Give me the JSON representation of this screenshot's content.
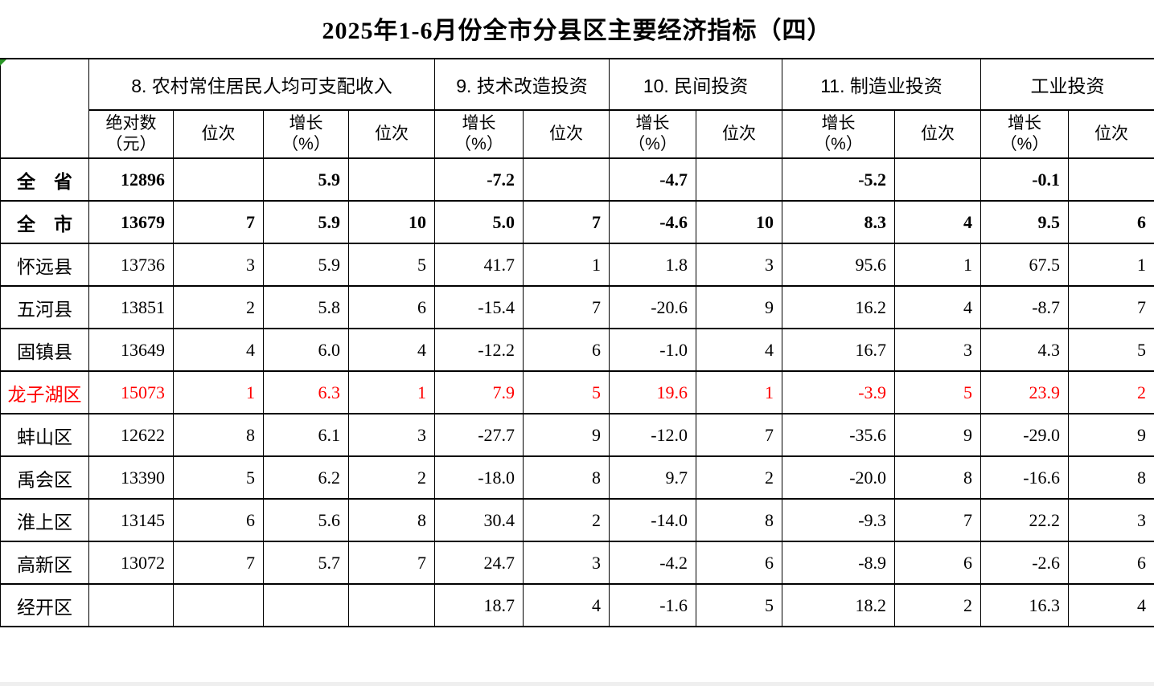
{
  "title": "2025年1-6月份全市分县区主要经济指标（四）",
  "colors": {
    "highlight_red": "#ff0000",
    "error_indicator_green": "#2a9627",
    "border_black": "#000000"
  },
  "table": {
    "groups": [
      {
        "label": "8. 农村常住居民人均可支配收入",
        "cols": 4
      },
      {
        "label": "9. 技术改造投资",
        "cols": 2
      },
      {
        "label": "10. 民间投资",
        "cols": 2
      },
      {
        "label": "11. 制造业投资",
        "cols": 2
      },
      {
        "label": "工业投资",
        "cols": 2
      }
    ],
    "subheaders": [
      {
        "l1": "绝对数",
        "l2": "（元）"
      },
      {
        "l1": "位次",
        "l2": ""
      },
      {
        "l1": "增长",
        "l2": "（%）"
      },
      {
        "l1": "位次",
        "l2": ""
      },
      {
        "l1": "增长",
        "l2": "（%）"
      },
      {
        "l1": "位次",
        "l2": ""
      },
      {
        "l1": "增长",
        "l2": "（%）"
      },
      {
        "l1": "位次",
        "l2": ""
      },
      {
        "l1": "增长",
        "l2": "（%）"
      },
      {
        "l1": "位次",
        "l2": ""
      },
      {
        "l1": "增长",
        "l2": "（%）"
      },
      {
        "l1": "位次",
        "l2": ""
      }
    ],
    "rows": [
      {
        "name": "全　省",
        "bold": true,
        "red": false,
        "values": [
          "12896",
          "",
          "5.9",
          "",
          "-7.2",
          "",
          "-4.7",
          "",
          "-5.2",
          "",
          "-0.1",
          ""
        ]
      },
      {
        "name": "全　市",
        "bold": true,
        "red": false,
        "values": [
          "13679",
          "7",
          "5.9",
          "10",
          "5.0",
          "7",
          "-4.6",
          "10",
          "8.3",
          "4",
          "9.5",
          "6"
        ]
      },
      {
        "name": "怀远县",
        "bold": false,
        "red": false,
        "values": [
          "13736",
          "3",
          "5.9",
          "5",
          "41.7",
          "1",
          "1.8",
          "3",
          "95.6",
          "1",
          "67.5",
          "1"
        ]
      },
      {
        "name": "五河县",
        "bold": false,
        "red": false,
        "values": [
          "13851",
          "2",
          "5.8",
          "6",
          "-15.4",
          "7",
          "-20.6",
          "9",
          "16.2",
          "4",
          "-8.7",
          "7"
        ]
      },
      {
        "name": "固镇县",
        "bold": false,
        "red": false,
        "values": [
          "13649",
          "4",
          "6.0",
          "4",
          "-12.2",
          "6",
          "-1.0",
          "4",
          "16.7",
          "3",
          "4.3",
          "5"
        ]
      },
      {
        "name": "龙子湖区",
        "bold": false,
        "red": true,
        "values": [
          "15073",
          "1",
          "6.3",
          "1",
          "7.9",
          "5",
          "19.6",
          "1",
          "-3.9",
          "5",
          "23.9",
          "2"
        ]
      },
      {
        "name": "蚌山区",
        "bold": false,
        "red": false,
        "values": [
          "12622",
          "8",
          "6.1",
          "3",
          "-27.7",
          "9",
          "-12.0",
          "7",
          "-35.6",
          "9",
          "-29.0",
          "9"
        ]
      },
      {
        "name": "禹会区",
        "bold": false,
        "red": false,
        "values": [
          "13390",
          "5",
          "6.2",
          "2",
          "-18.0",
          "8",
          "9.7",
          "2",
          "-20.0",
          "8",
          "-16.6",
          "8"
        ]
      },
      {
        "name": "淮上区",
        "bold": false,
        "red": false,
        "values": [
          "13145",
          "6",
          "5.6",
          "8",
          "30.4",
          "2",
          "-14.0",
          "8",
          "-9.3",
          "7",
          "22.2",
          "3"
        ]
      },
      {
        "name": "高新区",
        "bold": false,
        "red": false,
        "values": [
          "13072",
          "7",
          "5.7",
          "7",
          "24.7",
          "3",
          "-4.2",
          "6",
          "-8.9",
          "6",
          "-2.6",
          "6"
        ]
      },
      {
        "name": "经开区",
        "bold": false,
        "red": false,
        "values": [
          "",
          "",
          "",
          "",
          "18.7",
          "4",
          "-1.6",
          "5",
          "18.2",
          "2",
          "16.3",
          "4"
        ]
      }
    ]
  }
}
